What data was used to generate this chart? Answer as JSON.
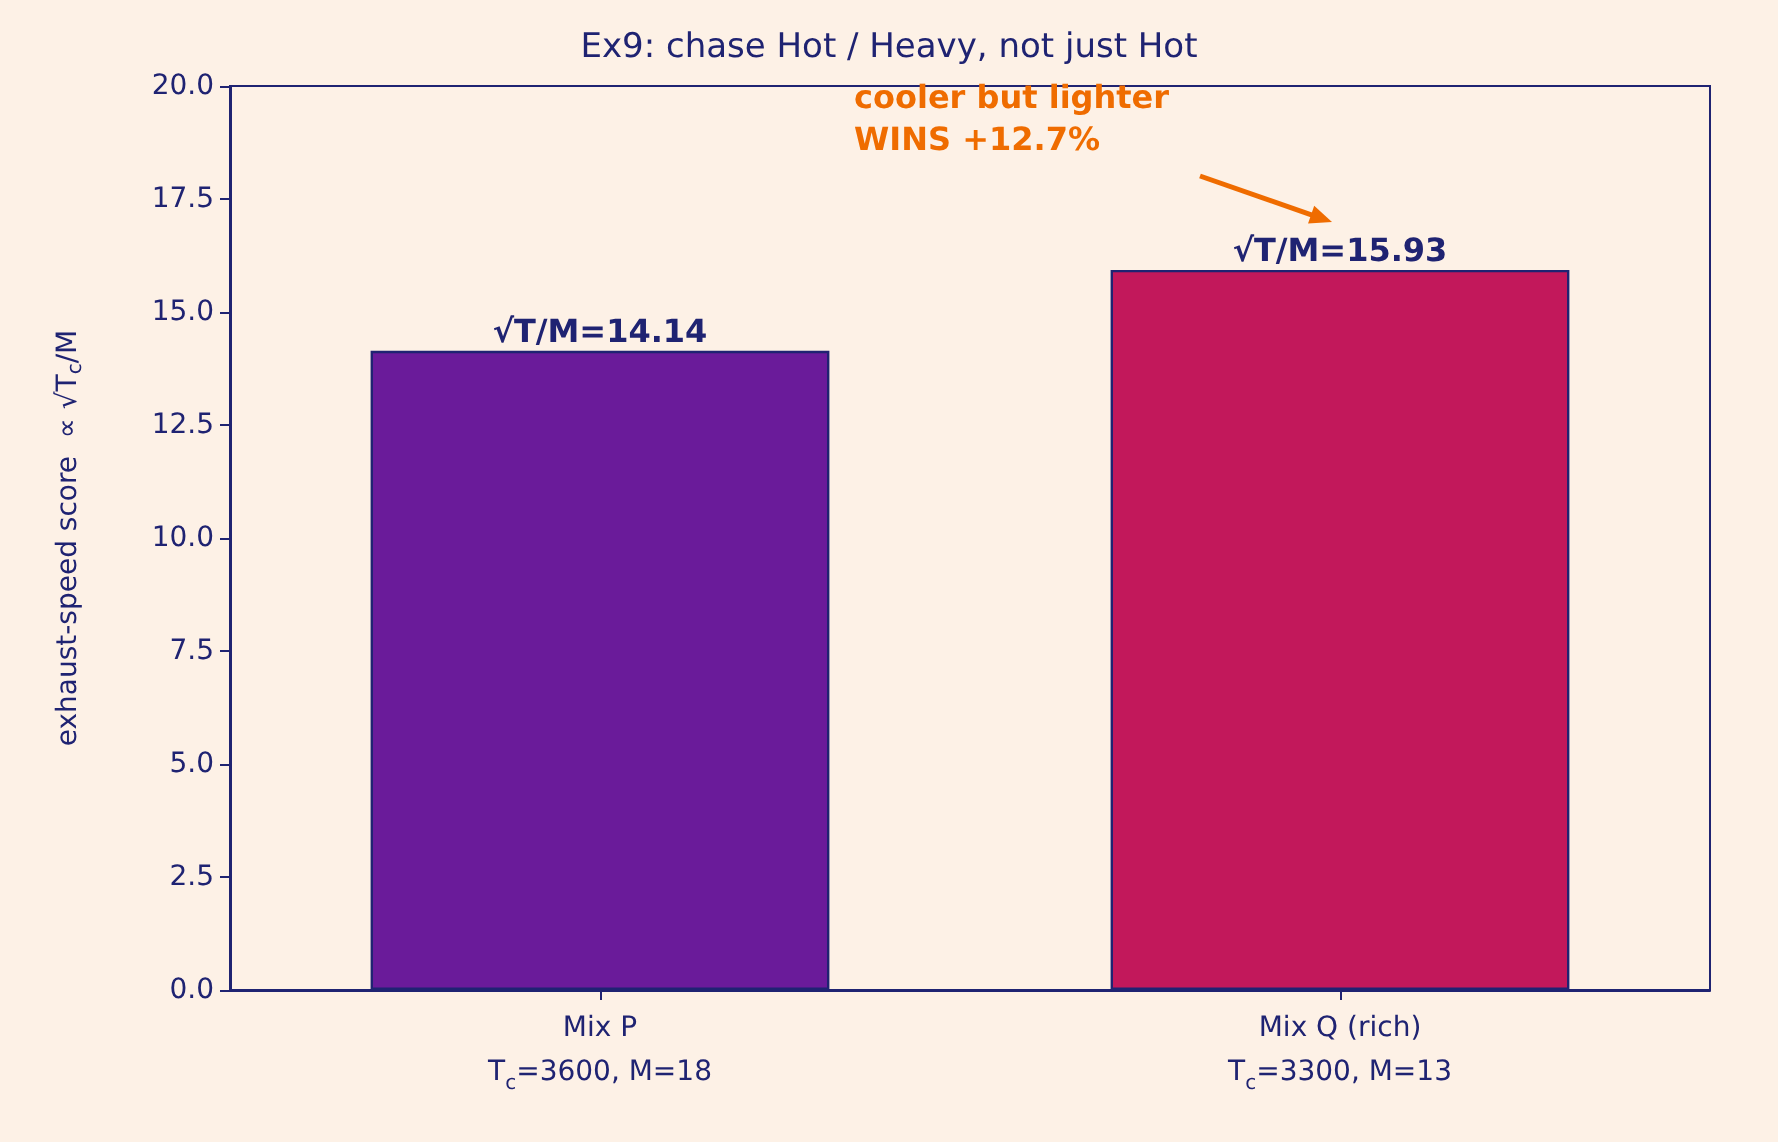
{
  "chart_data": {
    "type": "bar",
    "title": "Ex9: chase Hot / Heavy, not just Hot",
    "ylabel": "exhaust-speed score  ∝ √T$_{c}$/M",
    "categories": [
      "Mix P\nT$_{c}$=3600, M=18",
      "Mix Q (rich)\nT$_{c}$=3300, M=13"
    ],
    "values": [
      14.14,
      15.93
    ],
    "colors": [
      "#6a1b9a",
      "#c2185b"
    ],
    "value_labels": [
      "√T/M=14.14",
      "√T/M=15.93"
    ],
    "ylim": [
      0,
      20
    ],
    "yticks": [
      {
        "value": 0,
        "label": "0.0"
      },
      {
        "value": 2.5,
        "label": "2.5"
      },
      {
        "value": 5,
        "label": "5.0"
      },
      {
        "value": 7.5,
        "label": "7.5"
      },
      {
        "value": 10,
        "label": "10.0"
      },
      {
        "value": 12.5,
        "label": "12.5"
      },
      {
        "value": 15,
        "label": "15.0"
      },
      {
        "value": 17.5,
        "label": "17.5"
      },
      {
        "value": 20,
        "label": "20.0"
      }
    ],
    "annotations": [
      "cooler but lighter\nWINS +12.7%"
    ],
    "grid": false
  }
}
